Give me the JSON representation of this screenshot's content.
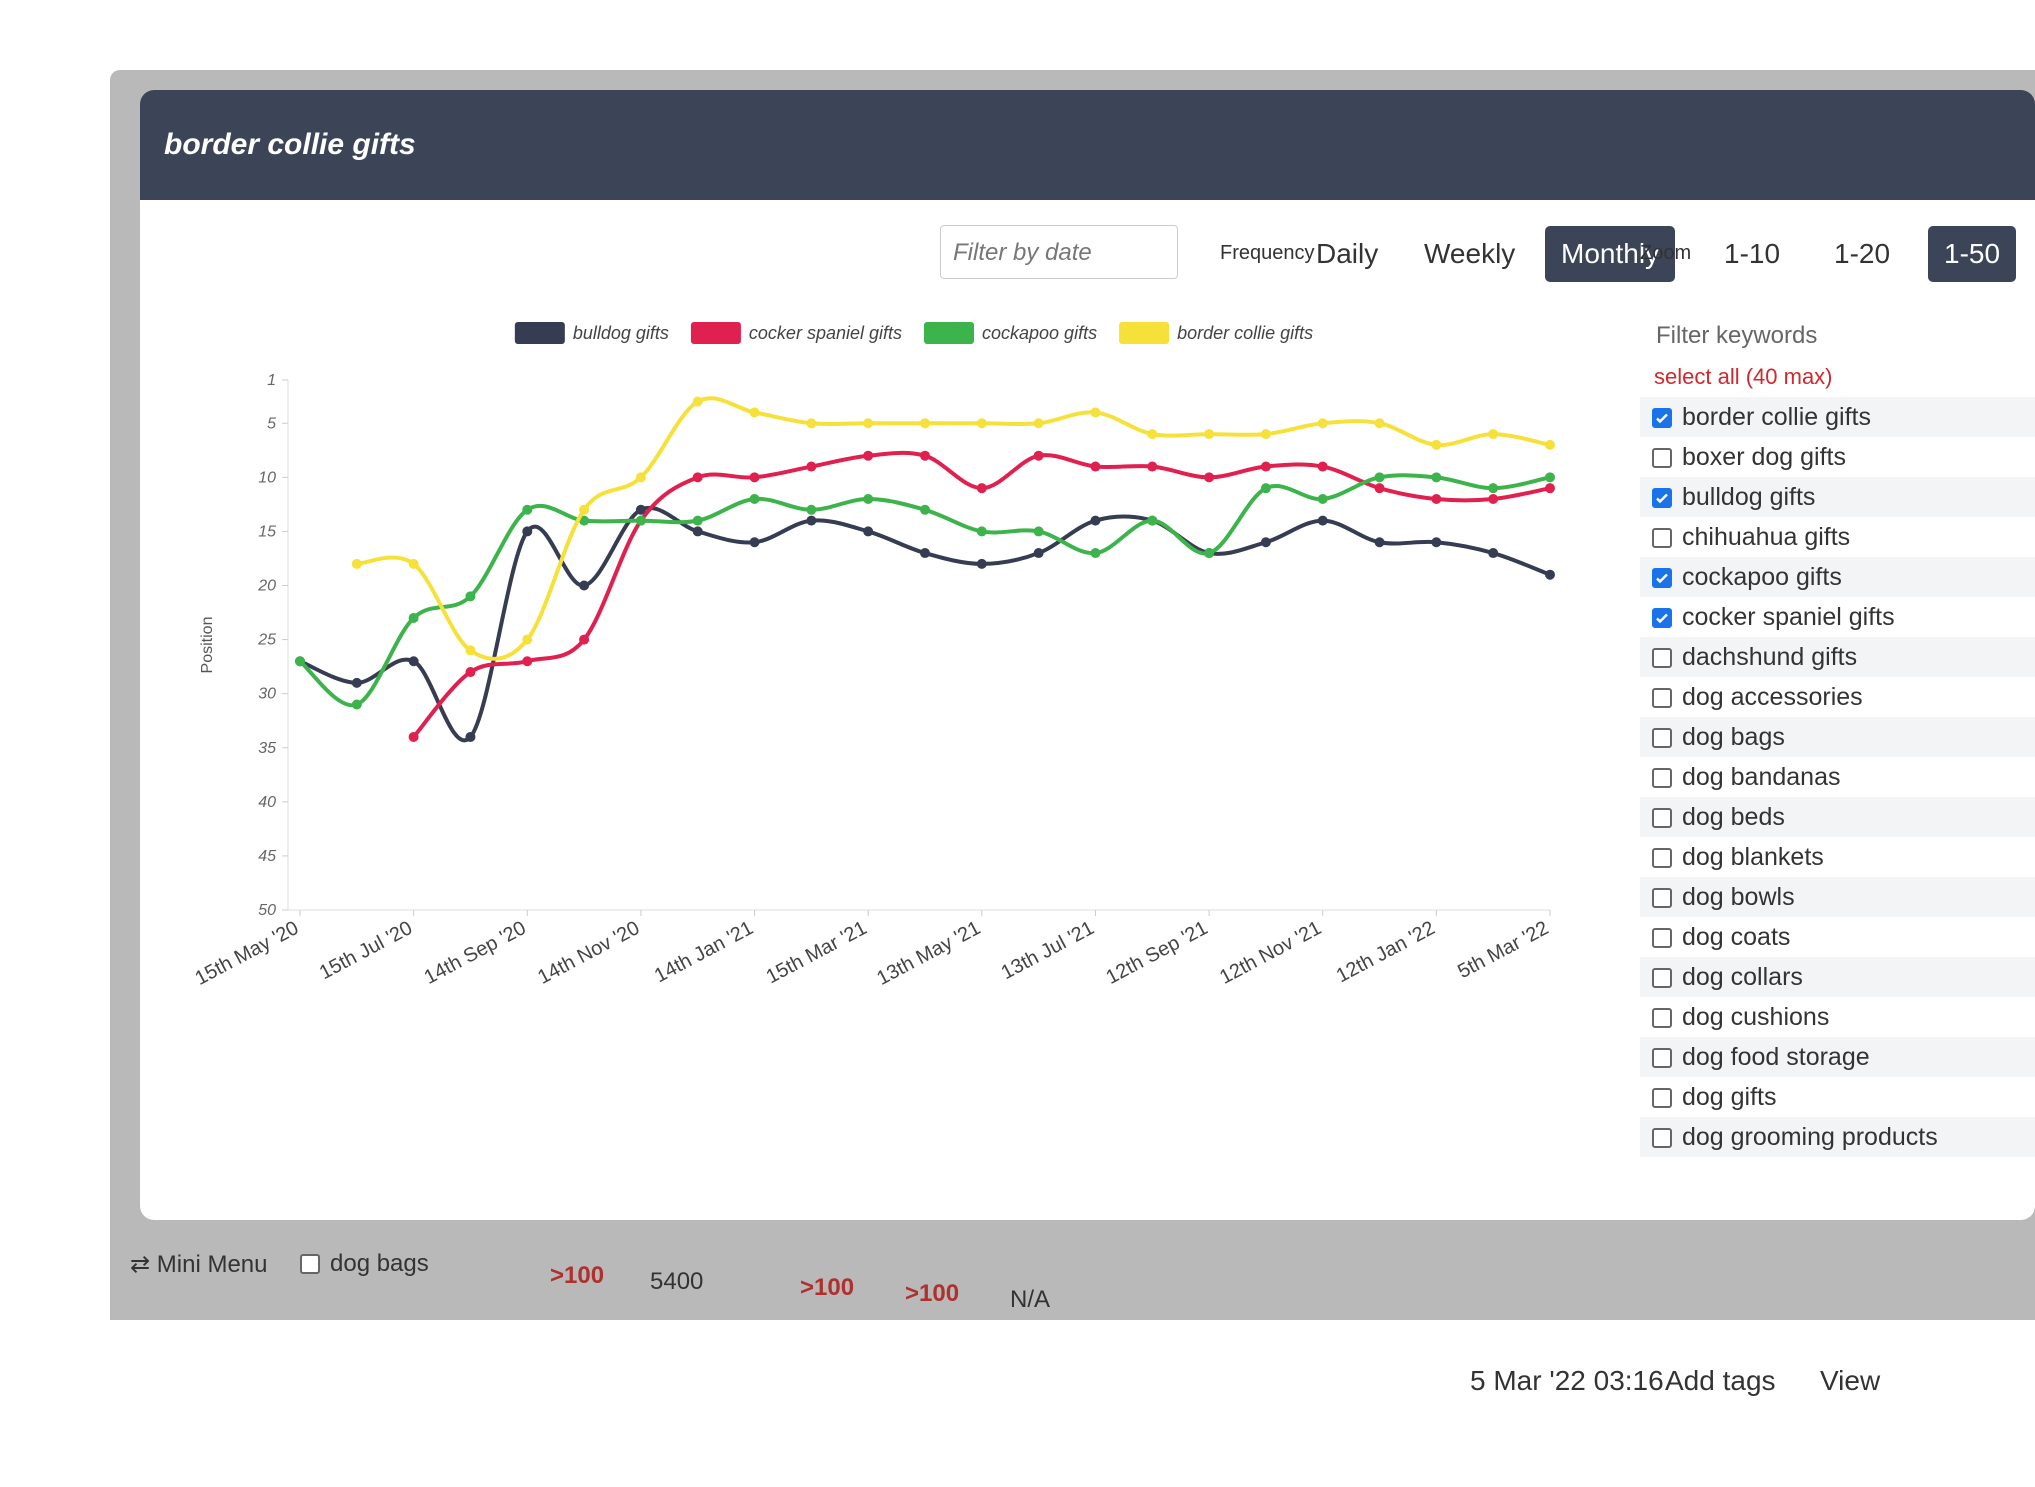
{
  "header": {
    "title": "border collie gifts"
  },
  "controls": {
    "filter_placeholder": "Filter by date",
    "frequency_label": "Frequency",
    "frequency_options": [
      "Daily",
      "Weekly",
      "Monthly"
    ],
    "frequency_active": 2,
    "zoom_label": "Zoom",
    "zoom_options": [
      "1-10",
      "1-20",
      "1-50"
    ],
    "zoom_active": 2
  },
  "chart_data": {
    "type": "line",
    "y_label": "Position",
    "categories": [
      "15th May '20",
      null,
      "15th Jul '20",
      null,
      "14th Sep '20",
      null,
      "14th Nov '20",
      null,
      "14th Jan '21",
      null,
      "15th Mar '21",
      null,
      "13th May '21",
      null,
      "13th Jul '21",
      null,
      "12th Sep '21",
      null,
      "12th Nov '21",
      null,
      "12th Jan '22",
      null,
      "5th Mar '22"
    ],
    "series": [
      {
        "name": "bulldog gifts",
        "color": "#363d52",
        "values": [
          27,
          29,
          27,
          34,
          15,
          20,
          13,
          15,
          16,
          14,
          15,
          17,
          18,
          17,
          14,
          14,
          17,
          16,
          14,
          16,
          16,
          17,
          19
        ]
      },
      {
        "name": "cocker spaniel gifts",
        "color": "#e0204e",
        "values": [
          null,
          null,
          34,
          28,
          27,
          25,
          14,
          10,
          10,
          9,
          8,
          8,
          11,
          8,
          9,
          9,
          10,
          9,
          9,
          11,
          12,
          12,
          11
        ]
      },
      {
        "name": "cockapoo gifts",
        "color": "#3cb44b",
        "values": [
          27,
          31,
          23,
          21,
          13,
          14,
          14,
          14,
          12,
          13,
          12,
          13,
          15,
          15,
          17,
          14,
          17,
          11,
          12,
          10,
          10,
          11,
          10
        ]
      },
      {
        "name": "border collie gifts",
        "color": "#f5e13a",
        "values": [
          null,
          18,
          18,
          26,
          25,
          13,
          10,
          3,
          4,
          5,
          5,
          5,
          5,
          5,
          4,
          6,
          6,
          6,
          5,
          5,
          7,
          6,
          7
        ]
      }
    ],
    "ylim": [
      50,
      1
    ],
    "yticks": [
      1,
      5,
      10,
      15,
      20,
      25,
      30,
      35,
      40,
      45,
      50
    ],
    "grid": false,
    "legend": "top",
    "smooth": true
  },
  "keywords": {
    "title": "Filter keywords",
    "select_all": "select all (40 max)",
    "items": [
      {
        "label": "border collie gifts",
        "checked": true
      },
      {
        "label": "boxer dog gifts",
        "checked": false
      },
      {
        "label": "bulldog gifts",
        "checked": true
      },
      {
        "label": "chihuahua gifts",
        "checked": false
      },
      {
        "label": "cockapoo gifts",
        "checked": true
      },
      {
        "label": "cocker spaniel gifts",
        "checked": true
      },
      {
        "label": "dachshund gifts",
        "checked": false
      },
      {
        "label": "dog accessories",
        "checked": false
      },
      {
        "label": "dog bags",
        "checked": false
      },
      {
        "label": "dog bandanas",
        "checked": false
      },
      {
        "label": "dog beds",
        "checked": false
      },
      {
        "label": "dog blankets",
        "checked": false
      },
      {
        "label": "dog bowls",
        "checked": false
      },
      {
        "label": "dog coats",
        "checked": false
      },
      {
        "label": "dog collars",
        "checked": false
      },
      {
        "label": "dog cushions",
        "checked": false
      },
      {
        "label": "dog food storage",
        "checked": false
      },
      {
        "label": "dog gifts",
        "checked": false
      },
      {
        "label": "dog grooming products",
        "checked": false
      }
    ]
  },
  "row": {
    "keyword": "dog bags",
    "cells": [
      ">100",
      5400,
      ">100",
      ">100",
      "N/A"
    ]
  },
  "footer": {
    "menu": "Mini Menu",
    "date": "5 Mar '22 03:16",
    "actions": [
      "Add tags",
      "View"
    ]
  }
}
